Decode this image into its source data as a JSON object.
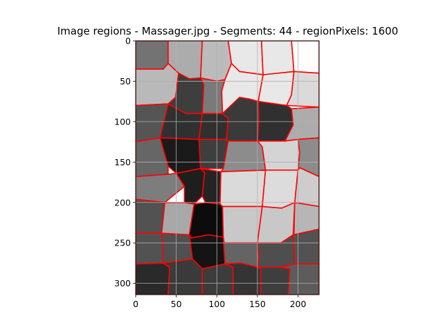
{
  "chart_data": {
    "type": "heatmap",
    "title": "Image regions - Massager.jpg - Segments: 44 - regionPixels: 1600",
    "xlim": [
      0,
      226
    ],
    "ylim": [
      314,
      0
    ],
    "x_ticks": [
      0,
      50,
      100,
      150,
      200
    ],
    "y_ticks": [
      0,
      50,
      100,
      150,
      200,
      250,
      300
    ],
    "grid": true,
    "boundary_color": "#ff0000",
    "grid_color": "#b0b0b0",
    "regions": [
      {
        "poly": [
          [
            0,
            0
          ],
          [
            40,
            0
          ],
          [
            40,
            28
          ],
          [
            34,
            35
          ],
          [
            0,
            35
          ]
        ],
        "gray": 115
      },
      {
        "poly": [
          [
            40,
            0
          ],
          [
            82,
            0
          ],
          [
            80,
            46
          ],
          [
            66,
            47
          ],
          [
            53,
            40
          ],
          [
            40,
            28
          ]
        ],
        "gray": 172
      },
      {
        "poly": [
          [
            82,
            0
          ],
          [
            114,
            0
          ],
          [
            118,
            28
          ],
          [
            110,
            48
          ],
          [
            100,
            50
          ],
          [
            80,
            46
          ]
        ],
        "gray": 187
      },
      {
        "poly": [
          [
            114,
            0
          ],
          [
            155,
            0
          ],
          [
            157,
            42
          ],
          [
            128,
            38
          ],
          [
            118,
            28
          ]
        ],
        "gray": 232
      },
      {
        "poly": [
          [
            155,
            0
          ],
          [
            192,
            0
          ],
          [
            195,
            38
          ],
          [
            157,
            42
          ]
        ],
        "gray": 232
      },
      {
        "poly": [
          [
            192,
            0
          ],
          [
            226,
            0
          ],
          [
            226,
            40
          ],
          [
            195,
            38
          ]
        ],
        "gray": 255
      },
      {
        "poly": [
          [
            0,
            35
          ],
          [
            34,
            35
          ],
          [
            40,
            28
          ],
          [
            53,
            40
          ],
          [
            49,
            70
          ],
          [
            40,
            78
          ],
          [
            0,
            80
          ]
        ],
        "gray": 185
      },
      {
        "poly": [
          [
            53,
            40
          ],
          [
            66,
            47
          ],
          [
            80,
            46
          ],
          [
            84,
            54
          ],
          [
            82,
            90
          ],
          [
            62,
            90
          ],
          [
            40,
            78
          ],
          [
            49,
            70
          ]
        ],
        "gray": 62
      },
      {
        "poly": [
          [
            80,
            46
          ],
          [
            100,
            50
          ],
          [
            110,
            48
          ],
          [
            106,
            62
          ],
          [
            107,
            90
          ],
          [
            82,
            90
          ],
          [
            84,
            54
          ]
        ],
        "gray": 122
      },
      {
        "poly": [
          [
            110,
            48
          ],
          [
            118,
            28
          ],
          [
            128,
            38
          ],
          [
            157,
            42
          ],
          [
            151,
            75
          ],
          [
            140,
            72
          ],
          [
            128,
            70
          ],
          [
            107,
            90
          ],
          [
            106,
            62
          ]
        ],
        "gray": 232
      },
      {
        "poly": [
          [
            157,
            42
          ],
          [
            195,
            38
          ],
          [
            192,
            67
          ],
          [
            186,
            80
          ],
          [
            151,
            75
          ]
        ],
        "gray": 232
      },
      {
        "poly": [
          [
            195,
            38
          ],
          [
            226,
            40
          ],
          [
            226,
            82
          ],
          [
            186,
            80
          ],
          [
            192,
            67
          ]
        ],
        "gray": 218
      },
      {
        "poly": [
          [
            0,
            80
          ],
          [
            40,
            78
          ],
          [
            30,
            120
          ],
          [
            0,
            125
          ]
        ],
        "gray": 85
      },
      {
        "poly": [
          [
            40,
            78
          ],
          [
            62,
            90
          ],
          [
            82,
            90
          ],
          [
            78,
            122
          ],
          [
            30,
            120
          ]
        ],
        "gray": 48
      },
      {
        "poly": [
          [
            82,
            90
          ],
          [
            107,
            90
          ],
          [
            114,
            96
          ],
          [
            112,
            122
          ],
          [
            78,
            122
          ]
        ],
        "gray": 48
      },
      {
        "poly": [
          [
            107,
            90
          ],
          [
            128,
            70
          ],
          [
            140,
            72
          ],
          [
            151,
            75
          ],
          [
            152,
            96
          ],
          [
            150,
            124
          ],
          [
            114,
            124
          ],
          [
            112,
            122
          ],
          [
            114,
            96
          ]
        ],
        "gray": 58
      },
      {
        "poly": [
          [
            151,
            75
          ],
          [
            186,
            80
          ],
          [
            192,
            84
          ],
          [
            194,
            104
          ],
          [
            184,
            124
          ],
          [
            150,
            124
          ],
          [
            152,
            96
          ]
        ],
        "gray": 48
      },
      {
        "poly": [
          [
            192,
            84
          ],
          [
            226,
            82
          ],
          [
            226,
            120
          ],
          [
            200,
            122
          ],
          [
            184,
            124
          ],
          [
            194,
            104
          ]
        ],
        "gray": 172
      },
      {
        "poly": [
          [
            0,
            125
          ],
          [
            30,
            120
          ],
          [
            40,
            155
          ],
          [
            40,
            165
          ],
          [
            0,
            168
          ]
        ],
        "gray": 102
      },
      {
        "poly": [
          [
            30,
            120
          ],
          [
            78,
            122
          ],
          [
            80,
            158
          ],
          [
            50,
            164
          ],
          [
            40,
            155
          ]
        ],
        "gray": 26
      },
      {
        "poly": [
          [
            78,
            122
          ],
          [
            112,
            122
          ],
          [
            114,
            124
          ],
          [
            108,
            158
          ],
          [
            80,
            158
          ]
        ],
        "gray": 62
      },
      {
        "poly": [
          [
            114,
            124
          ],
          [
            150,
            124
          ],
          [
            156,
            131
          ],
          [
            160,
            160
          ],
          [
            105,
            162
          ],
          [
            108,
            158
          ]
        ],
        "gray": 140
      },
      {
        "poly": [
          [
            150,
            124
          ],
          [
            184,
            124
          ],
          [
            200,
            122
          ],
          [
            202,
            138
          ],
          [
            200,
            160
          ],
          [
            160,
            160
          ],
          [
            156,
            131
          ]
        ],
        "gray": 212
      },
      {
        "poly": [
          [
            200,
            122
          ],
          [
            226,
            120
          ],
          [
            226,
            168
          ],
          [
            202,
            157
          ],
          [
            200,
            160
          ],
          [
            202,
            138
          ]
        ],
        "gray": 140
      },
      {
        "poly": [
          [
            0,
            168
          ],
          [
            40,
            165
          ],
          [
            50,
            164
          ],
          [
            60,
            180
          ],
          [
            36,
            200
          ],
          [
            0,
            196
          ]
        ],
        "gray": 125
      },
      {
        "poly": [
          [
            50,
            164
          ],
          [
            80,
            158
          ],
          [
            85,
            163
          ],
          [
            82,
            192
          ],
          [
            72,
            202
          ],
          [
            60,
            200
          ],
          [
            60,
            180
          ]
        ],
        "gray": 30
      },
      {
        "poly": [
          [
            80,
            158
          ],
          [
            105,
            162
          ],
          [
            104,
            202
          ],
          [
            86,
            200
          ],
          [
            82,
            192
          ],
          [
            85,
            163
          ]
        ],
        "gray": 36
      },
      {
        "poly": [
          [
            105,
            162
          ],
          [
            160,
            160
          ],
          [
            156,
            205
          ],
          [
            107,
            205
          ],
          [
            104,
            202
          ]
        ],
        "gray": 218
      },
      {
        "poly": [
          [
            160,
            160
          ],
          [
            200,
            160
          ],
          [
            196,
            200
          ],
          [
            180,
            207
          ],
          [
            156,
            205
          ]
        ],
        "gray": 220
      },
      {
        "poly": [
          [
            200,
            160
          ],
          [
            202,
            157
          ],
          [
            226,
            168
          ],
          [
            226,
            205
          ],
          [
            196,
            200
          ]
        ],
        "gray": 205
      },
      {
        "poly": [
          [
            0,
            196
          ],
          [
            36,
            200
          ],
          [
            32,
            238
          ],
          [
            0,
            238
          ]
        ],
        "gray": 82
      },
      {
        "poly": [
          [
            36,
            200
          ],
          [
            60,
            200
          ],
          [
            72,
            202
          ],
          [
            66,
            240
          ],
          [
            32,
            238
          ]
        ],
        "gray": 168
      },
      {
        "poly": [
          [
            72,
            202
          ],
          [
            86,
            200
          ],
          [
            104,
            202
          ],
          [
            107,
            205
          ],
          [
            108,
            243
          ],
          [
            90,
            240
          ],
          [
            68,
            244
          ],
          [
            66,
            240
          ]
        ],
        "gray": 12
      },
      {
        "poly": [
          [
            107,
            205
          ],
          [
            156,
            205
          ],
          [
            150,
            250
          ],
          [
            109,
            250
          ],
          [
            108,
            243
          ]
        ],
        "gray": 200
      },
      {
        "poly": [
          [
            156,
            205
          ],
          [
            180,
            207
          ],
          [
            196,
            200
          ],
          [
            194,
            240
          ],
          [
            179,
            250
          ],
          [
            150,
            250
          ]
        ],
        "gray": 200
      },
      {
        "poly": [
          [
            196,
            200
          ],
          [
            226,
            205
          ],
          [
            226,
            233
          ],
          [
            195,
            240
          ]
        ],
        "gray": 182
      },
      {
        "poly": [
          [
            0,
            238
          ],
          [
            32,
            238
          ],
          [
            34,
            260
          ],
          [
            34,
            275
          ],
          [
            0,
            276
          ]
        ],
        "gray": 82
      },
      {
        "poly": [
          [
            32,
            238
          ],
          [
            66,
            240
          ],
          [
            70,
            270
          ],
          [
            34,
            275
          ],
          [
            34,
            260
          ]
        ],
        "gray": 80
      },
      {
        "poly": [
          [
            66,
            240
          ],
          [
            68,
            244
          ],
          [
            90,
            240
          ],
          [
            108,
            243
          ],
          [
            110,
            276
          ],
          [
            82,
            282
          ],
          [
            70,
            270
          ]
        ],
        "gray": 20
      },
      {
        "poly": [
          [
            108,
            243
          ],
          [
            109,
            250
          ],
          [
            150,
            250
          ],
          [
            152,
            268
          ],
          [
            150,
            280
          ],
          [
            130,
            275
          ],
          [
            110,
            276
          ]
        ],
        "gray": 100
      },
      {
        "poly": [
          [
            150,
            250
          ],
          [
            179,
            250
          ],
          [
            194,
            240
          ],
          [
            196,
            276
          ],
          [
            178,
            280
          ],
          [
            150,
            280
          ],
          [
            152,
            268
          ]
        ],
        "gray": 78
      },
      {
        "poly": [
          [
            194,
            240
          ],
          [
            226,
            233
          ],
          [
            226,
            276
          ],
          [
            196,
            276
          ]
        ],
        "gray": 82
      },
      {
        "poly": [
          [
            0,
            276
          ],
          [
            34,
            275
          ],
          [
            42,
            280
          ],
          [
            40,
            314
          ],
          [
            0,
            314
          ]
        ],
        "gray": 42
      },
      {
        "poly": [
          [
            34,
            275
          ],
          [
            70,
            270
          ],
          [
            82,
            282
          ],
          [
            82,
            314
          ],
          [
            40,
            314
          ],
          [
            42,
            280
          ]
        ],
        "gray": 58
      },
      {
        "poly": [
          [
            82,
            282
          ],
          [
            110,
            276
          ],
          [
            120,
            280
          ],
          [
            120,
            314
          ],
          [
            82,
            314
          ]
        ],
        "gray": 60
      },
      {
        "poly": [
          [
            110,
            276
          ],
          [
            130,
            275
          ],
          [
            150,
            280
          ],
          [
            154,
            282
          ],
          [
            154,
            314
          ],
          [
            120,
            314
          ],
          [
            120,
            280
          ]
        ],
        "gray": 52
      },
      {
        "poly": [
          [
            150,
            280
          ],
          [
            178,
            280
          ],
          [
            190,
            282
          ],
          [
            188,
            314
          ],
          [
            154,
            314
          ],
          [
            154,
            282
          ]
        ],
        "gray": 62
      },
      {
        "poly": [
          [
            178,
            280
          ],
          [
            196,
            276
          ],
          [
            226,
            276
          ],
          [
            226,
            314
          ],
          [
            188,
            314
          ],
          [
            190,
            282
          ]
        ],
        "gray": 92
      }
    ]
  }
}
